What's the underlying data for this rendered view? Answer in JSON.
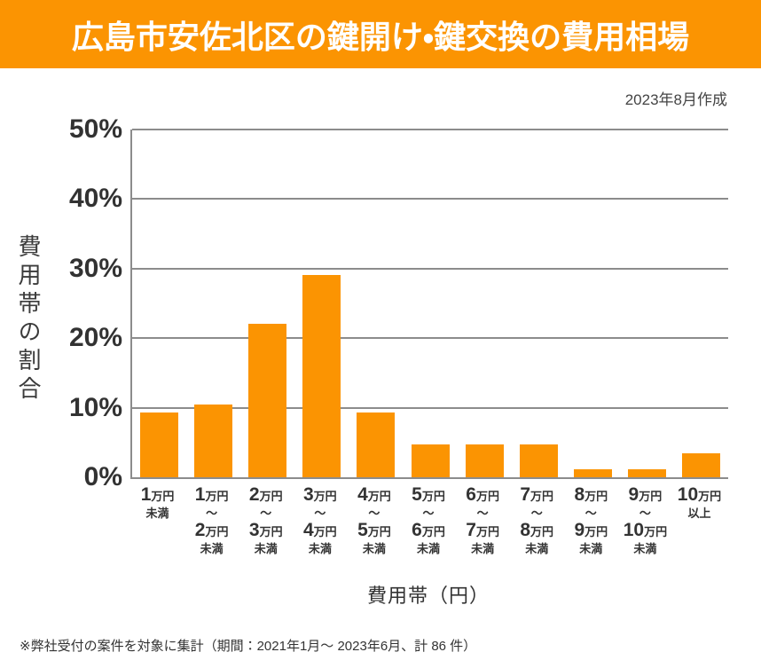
{
  "header": {
    "title": "広島市安佐北区の鍵開け・鍵交換の費用相場",
    "created": "2023年8月作成"
  },
  "colors": {
    "accent_orange": "#fb9402",
    "grid_gray": "#8c8c8c",
    "text_dark": "#333333",
    "title_white": "#ffffff"
  },
  "chart_data": {
    "type": "bar",
    "title": "広島市安佐北区の鍵開け・鍵交換の費用相場",
    "xlabel": "費用帯（円）",
    "ylabel": "費用帯の割合",
    "ylim": [
      0,
      50
    ],
    "yticks": [
      0,
      10,
      20,
      30,
      40,
      50
    ],
    "ytick_suffix": "%",
    "grid": true,
    "legend": false,
    "bar_color": "#fb9402",
    "categories": [
      "1万円未満",
      "1万円〜2万円未満",
      "2万円〜3万円未満",
      "3万円〜4万円未満",
      "4万円〜5万円未満",
      "5万円〜6万円未満",
      "6万円〜7万円未満",
      "7万円〜8万円未満",
      "8万円〜9万円未満",
      "9万円〜10万円未満",
      "10万円以上"
    ],
    "category_lines": [
      [
        "1万円",
        "未満"
      ],
      [
        "1万円",
        "〜",
        "2万円",
        "未満"
      ],
      [
        "2万円",
        "〜",
        "3万円",
        "未満"
      ],
      [
        "3万円",
        "〜",
        "4万円",
        "未満"
      ],
      [
        "4万円",
        "〜",
        "5万円",
        "未満"
      ],
      [
        "5万円",
        "〜",
        "6万円",
        "未満"
      ],
      [
        "6万円",
        "〜",
        "7万円",
        "未満"
      ],
      [
        "7万円",
        "〜",
        "8万円",
        "未満"
      ],
      [
        "8万円",
        "〜",
        "9万円",
        "未満"
      ],
      [
        "9万円",
        "〜",
        "10万円",
        "未満"
      ],
      [
        "10万円",
        "以上"
      ]
    ],
    "values": [
      9.3,
      10.5,
      22.1,
      29.1,
      9.3,
      4.7,
      4.7,
      4.7,
      1.2,
      1.2,
      3.5
    ]
  },
  "footer": {
    "note": "※弊社受付の案件を対象に集計（期間：2021年1月～ 2023年6月、計 86 件）"
  }
}
